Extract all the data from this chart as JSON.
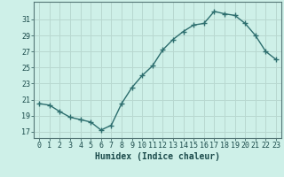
{
  "x": [
    0,
    1,
    2,
    3,
    4,
    5,
    6,
    7,
    8,
    9,
    10,
    11,
    12,
    13,
    14,
    15,
    16,
    17,
    18,
    19,
    20,
    21,
    22,
    23
  ],
  "y": [
    20.5,
    20.3,
    19.5,
    18.8,
    18.5,
    18.2,
    17.2,
    17.8,
    20.5,
    22.5,
    24.0,
    25.2,
    27.2,
    28.5,
    29.5,
    30.3,
    30.5,
    32.0,
    31.7,
    31.5,
    30.5,
    29.0,
    27.0,
    26.0
  ],
  "line_color": "#2d6e6e",
  "marker": "+",
  "bg_color": "#cef0e8",
  "grid_color": "#b8d8d0",
  "xlabel": "Humidex (Indice chaleur)",
  "ylabel_ticks": [
    17,
    19,
    21,
    23,
    25,
    27,
    29,
    31
  ],
  "ylim": [
    16.2,
    33.2
  ],
  "xlim": [
    -0.5,
    23.5
  ],
  "line_width": 1.0,
  "marker_size": 4,
  "tick_fontsize": 6.0,
  "xlabel_fontsize": 7.0
}
